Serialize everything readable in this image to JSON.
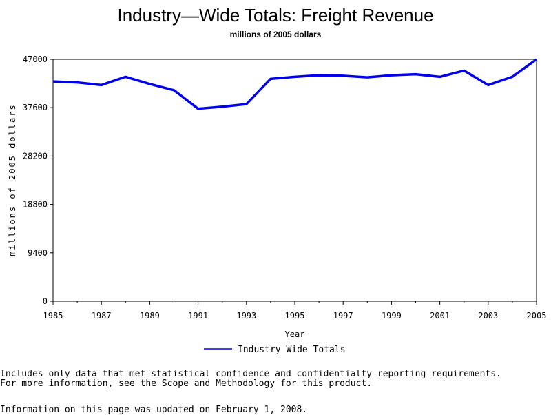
{
  "chart_data": {
    "type": "line",
    "title": "Industry—Wide Totals: Freight Revenue",
    "subtitle": "millions of 2005 dollars",
    "xlabel": "Year",
    "ylabel": "millions of 2005 dollars",
    "xlim": [
      1985,
      2005
    ],
    "ylim": [
      0,
      47000
    ],
    "x_ticks": [
      "1985",
      "1987",
      "1989",
      "1991",
      "1993",
      "1995",
      "1997",
      "1999",
      "2001",
      "2003",
      "2005"
    ],
    "y_ticks": [
      "0",
      "9400",
      "18800",
      "28200",
      "37600",
      "47000"
    ],
    "x": [
      1985,
      1986,
      1987,
      1988,
      1989,
      1990,
      1991,
      1992,
      1993,
      1994,
      1995,
      1996,
      1997,
      1998,
      1999,
      2000,
      2001,
      2002,
      2003,
      2004,
      2005
    ],
    "series": [
      {
        "name": "Industry Wide Totals",
        "color": "#0000ee",
        "values": [
          42700,
          42500,
          42000,
          43600,
          42200,
          41000,
          37400,
          37800,
          38300,
          43200,
          43600,
          43900,
          43800,
          43500,
          43900,
          44100,
          43600,
          44800,
          42000,
          43600,
          47000
        ]
      }
    ],
    "grid": false,
    "legend_position": "bottom"
  },
  "notes": {
    "line1": "Includes only data that met statistical confidence and confidentialty reporting requirements.",
    "line2": "For more information, see the Scope and Methodology for this product.",
    "updated": "Information on this page was updated on February 1, 2008."
  }
}
